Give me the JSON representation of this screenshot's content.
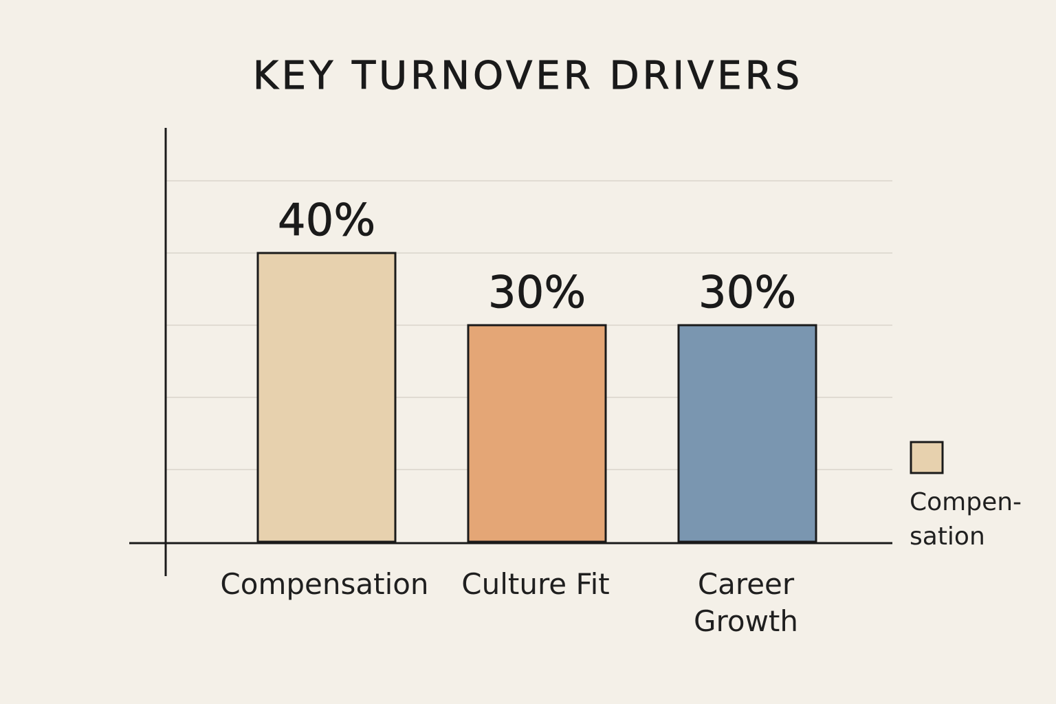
{
  "chart_data": {
    "type": "bar",
    "title": "KEY TURNOVER DRIVERS",
    "categories": [
      "Compensation",
      "Culture Fit",
      "Career Growth"
    ],
    "category_label_lines": [
      [
        "Compensation"
      ],
      [
        "Culture Fit"
      ],
      [
        "Career",
        "Growth"
      ]
    ],
    "values": [
      40,
      30,
      30
    ],
    "value_labels": [
      "40%",
      "30%",
      "30%"
    ],
    "colors": [
      "#e7d1ae",
      "#e4a676",
      "#7a96b0"
    ],
    "ylim": [
      0,
      50
    ],
    "grid": true,
    "axis_tick_labels": false,
    "xlabel": "",
    "ylabel": "",
    "legend": {
      "placement": "right",
      "entries": [
        {
          "label_lines": [
            "Compen-",
            "sation"
          ],
          "color": "#e7d1ae"
        }
      ]
    }
  }
}
